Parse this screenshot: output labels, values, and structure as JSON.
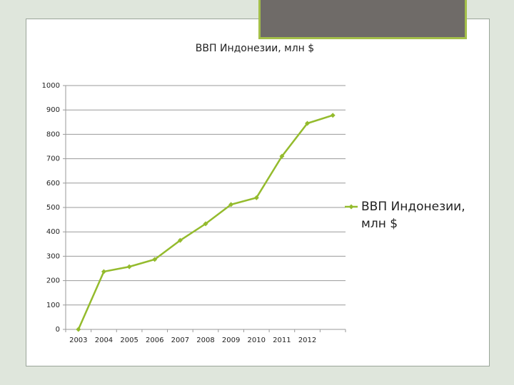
{
  "chart_data": {
    "type": "line",
    "title": "ВВП Индонезии, млн $",
    "categories": [
      "2003",
      "2004",
      "2005",
      "2006",
      "2007",
      "2008",
      "2009",
      "2010",
      "2011",
      "2012",
      null
    ],
    "series": [
      {
        "name": "ВВП Индонезии, млн $",
        "color": "#94bb2d",
        "values": [
          0,
          237,
          257,
          287,
          365,
          433,
          512,
          540,
          710,
          845,
          878
        ]
      }
    ],
    "ylim": [
      0,
      1000
    ],
    "yticks": [
      0,
      100,
      200,
      300,
      400,
      500,
      600,
      700,
      800,
      900,
      1000
    ],
    "grid": true,
    "legend": "right"
  }
}
